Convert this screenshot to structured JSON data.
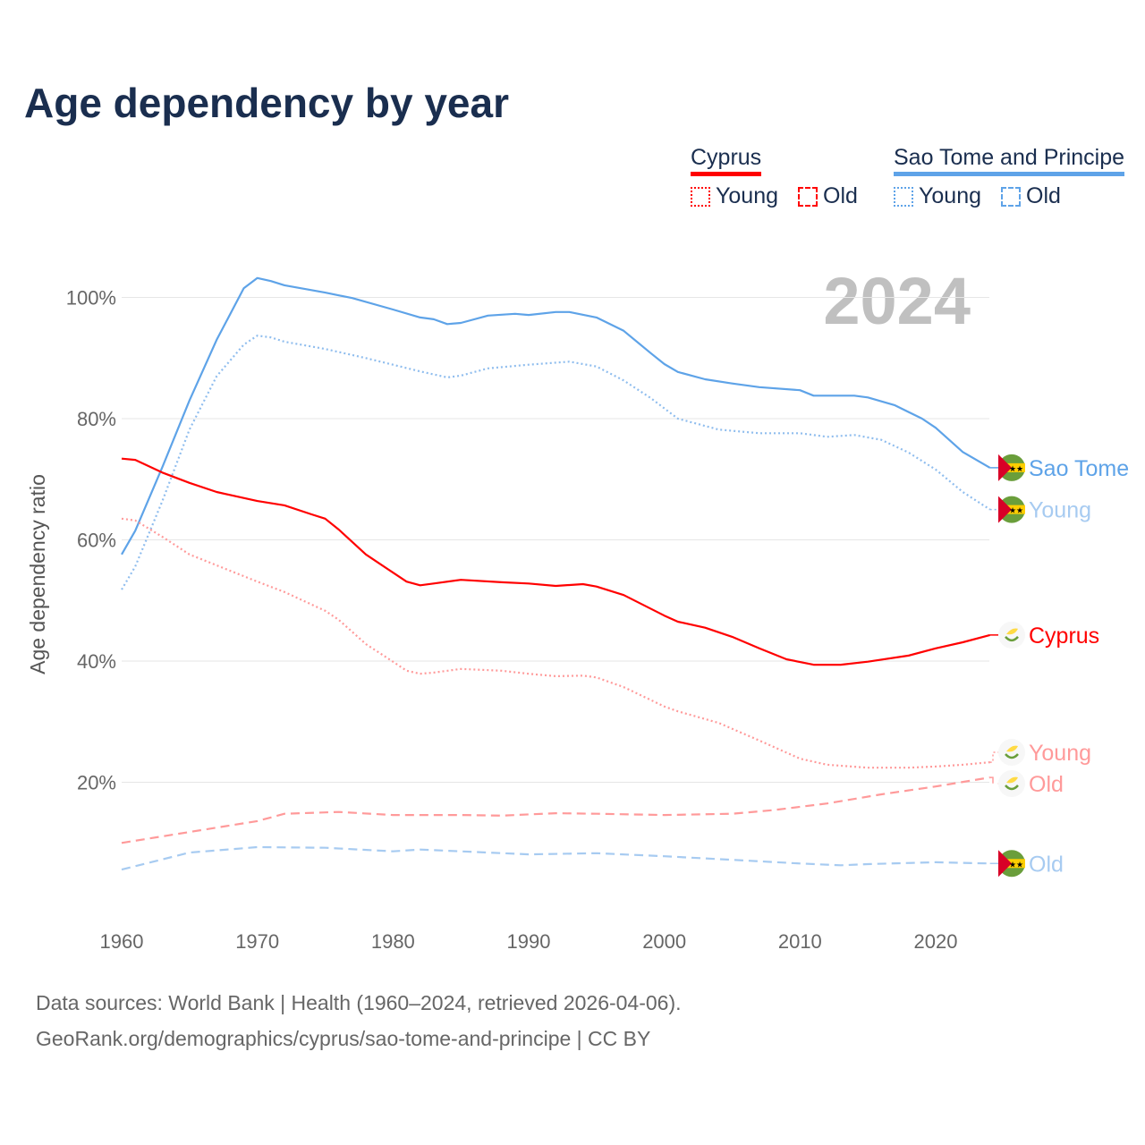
{
  "title": "Age dependency by year",
  "legend": {
    "groups": [
      {
        "name": "Cyprus",
        "color": "#ff0000",
        "items": [
          "Young",
          "Old"
        ]
      },
      {
        "name": "Sao Tome and Principe",
        "color": "#5ea3e8",
        "items": [
          "Young",
          "Old"
        ]
      }
    ]
  },
  "year_badge": "2024",
  "footer": {
    "line1": "Data sources: World Bank | Health (1960–2024, retrieved 2026-04-06).",
    "line2": "GeoRank.org/demographics/cyprus/sao-tome-and-principe | CC BY"
  },
  "chart_data": {
    "type": "line",
    "title": "Age dependency by year",
    "xlabel": "",
    "ylabel": "Age dependency ratio",
    "xlim": [
      1960,
      2024
    ],
    "ylim": [
      0,
      105
    ],
    "x_ticks": [
      "1960",
      "1970",
      "1980",
      "1990",
      "2000",
      "2010",
      "2020"
    ],
    "y_ticks": [
      "20%",
      "40%",
      "60%",
      "80%",
      "100%"
    ],
    "grid": true,
    "series": [
      {
        "name": "Sao Tome and Principe - Total",
        "end_label": "Sao Tome",
        "color": "#5ea3e8",
        "label_color": "#5ea3e8",
        "style": "solid",
        "flag": "st",
        "points": [
          [
            1960,
            57.6
          ],
          [
            1961,
            61.5
          ],
          [
            1963,
            72
          ],
          [
            1965,
            83
          ],
          [
            1967,
            93
          ],
          [
            1969,
            101.5
          ],
          [
            1970,
            103.2
          ],
          [
            1971,
            102.7
          ],
          [
            1972,
            102
          ],
          [
            1975,
            100.8
          ],
          [
            1977,
            99.9
          ],
          [
            1980,
            98
          ],
          [
            1982,
            96.7
          ],
          [
            1983,
            96.4
          ],
          [
            1984,
            95.6
          ],
          [
            1985,
            95.8
          ],
          [
            1987,
            97
          ],
          [
            1989,
            97.3
          ],
          [
            1990,
            97.1
          ],
          [
            1992,
            97.6
          ],
          [
            1993,
            97.6
          ],
          [
            1995,
            96.7
          ],
          [
            1997,
            94.5
          ],
          [
            1999,
            90.8
          ],
          [
            2000,
            89
          ],
          [
            2001,
            87.7
          ],
          [
            2003,
            86.5
          ],
          [
            2005,
            85.8
          ],
          [
            2007,
            85.2
          ],
          [
            2010,
            84.7
          ],
          [
            2011,
            83.8
          ],
          [
            2014,
            83.8
          ],
          [
            2015,
            83.5
          ],
          [
            2017,
            82.2
          ],
          [
            2019,
            80
          ],
          [
            2020,
            78.5
          ],
          [
            2022,
            74.5
          ],
          [
            2024,
            71.9
          ]
        ]
      },
      {
        "name": "Sao Tome and Principe - Young",
        "end_label": "Young",
        "color": "#8fbdee",
        "label_color": "#a7cbf1",
        "style": "dotted",
        "flag": "st",
        "points": [
          [
            1960,
            51.8
          ],
          [
            1961,
            55.6
          ],
          [
            1963,
            66.4
          ],
          [
            1965,
            78.2
          ],
          [
            1967,
            87
          ],
          [
            1969,
            92.2
          ],
          [
            1970,
            93.7
          ],
          [
            1971,
            93.4
          ],
          [
            1972,
            92.7
          ],
          [
            1975,
            91.5
          ],
          [
            1978,
            90
          ],
          [
            1980,
            88.9
          ],
          [
            1982,
            87.8
          ],
          [
            1984,
            86.8
          ],
          [
            1985,
            87.1
          ],
          [
            1987,
            88.3
          ],
          [
            1990,
            88.9
          ],
          [
            1993,
            89.4
          ],
          [
            1995,
            88.6
          ],
          [
            1997,
            86.3
          ],
          [
            1999,
            83.4
          ],
          [
            2001,
            80
          ],
          [
            2004,
            78.2
          ],
          [
            2007,
            77.6
          ],
          [
            2010,
            77.6
          ],
          [
            2012,
            77
          ],
          [
            2014,
            77.3
          ],
          [
            2016,
            76.5
          ],
          [
            2018,
            74.4
          ],
          [
            2020,
            71.6
          ],
          [
            2022,
            67.9
          ],
          [
            2024,
            65
          ]
        ]
      },
      {
        "name": "Cyprus - Total",
        "end_label": "Cyprus",
        "color": "#ff0000",
        "label_color": "#ff0000",
        "style": "solid",
        "flag": "cy",
        "points": [
          [
            1960,
            73.4
          ],
          [
            1961,
            73.2
          ],
          [
            1963,
            71.1
          ],
          [
            1965,
            69.4
          ],
          [
            1967,
            67.9
          ],
          [
            1970,
            66.4
          ],
          [
            1972,
            65.7
          ],
          [
            1974,
            64.2
          ],
          [
            1975,
            63.5
          ],
          [
            1976,
            61.7
          ],
          [
            1978,
            57.6
          ],
          [
            1980,
            54.6
          ],
          [
            1981,
            53.1
          ],
          [
            1982,
            52.5
          ],
          [
            1983,
            52.8
          ],
          [
            1985,
            53.4
          ],
          [
            1988,
            53
          ],
          [
            1990,
            52.8
          ],
          [
            1992,
            52.4
          ],
          [
            1994,
            52.7
          ],
          [
            1995,
            52.3
          ],
          [
            1997,
            50.9
          ],
          [
            2000,
            47.5
          ],
          [
            2001,
            46.5
          ],
          [
            2003,
            45.5
          ],
          [
            2005,
            44
          ],
          [
            2007,
            42.1
          ],
          [
            2009,
            40.3
          ],
          [
            2011,
            39.4
          ],
          [
            2013,
            39.4
          ],
          [
            2015,
            39.9
          ],
          [
            2018,
            40.9
          ],
          [
            2020,
            42.1
          ],
          [
            2022,
            43.1
          ],
          [
            2024,
            44.3
          ]
        ]
      },
      {
        "name": "Cyprus - Young",
        "end_label": "Young",
        "color": "#ff9a9a",
        "label_color": "#ff9a9a",
        "style": "dotted",
        "flag": "cy",
        "points": [
          [
            1960,
            63.5
          ],
          [
            1961,
            63.2
          ],
          [
            1963,
            60.5
          ],
          [
            1965,
            57.6
          ],
          [
            1967,
            55.8
          ],
          [
            1970,
            53.1
          ],
          [
            1972,
            51.4
          ],
          [
            1975,
            48.3
          ],
          [
            1976,
            46.8
          ],
          [
            1978,
            42.8
          ],
          [
            1980,
            39.9
          ],
          [
            1981,
            38.4
          ],
          [
            1982,
            37.9
          ],
          [
            1983,
            38.1
          ],
          [
            1985,
            38.7
          ],
          [
            1988,
            38.4
          ],
          [
            1990,
            37.9
          ],
          [
            1992,
            37.5
          ],
          [
            1994,
            37.6
          ],
          [
            1995,
            37.3
          ],
          [
            1997,
            35.7
          ],
          [
            2000,
            32.5
          ],
          [
            2001,
            31.7
          ],
          [
            2004,
            29.8
          ],
          [
            2007,
            26.9
          ],
          [
            2010,
            23.9
          ],
          [
            2012,
            22.9
          ],
          [
            2015,
            22.4
          ],
          [
            2018,
            22.4
          ],
          [
            2020,
            22.6
          ],
          [
            2022,
            22.9
          ],
          [
            2024,
            23.3
          ]
        ]
      },
      {
        "name": "Cyprus - Old",
        "end_label": "Old",
        "color": "#ff9a9a",
        "label_color": "#ff9a9a",
        "style": "dashed",
        "flag": "cy",
        "points": [
          [
            1960,
            10
          ],
          [
            1965,
            11.8
          ],
          [
            1970,
            13.6
          ],
          [
            1972,
            14.8
          ],
          [
            1976,
            15.1
          ],
          [
            1980,
            14.6
          ],
          [
            1985,
            14.6
          ],
          [
            1988,
            14.5
          ],
          [
            1992,
            14.9
          ],
          [
            1995,
            14.8
          ],
          [
            2000,
            14.6
          ],
          [
            2005,
            14.8
          ],
          [
            2008,
            15.4
          ],
          [
            2012,
            16.5
          ],
          [
            2016,
            18
          ],
          [
            2020,
            19.3
          ],
          [
            2024,
            20.8
          ]
        ]
      },
      {
        "name": "Sao Tome and Principe - Old",
        "end_label": "Old",
        "color": "#a7cbf1",
        "label_color": "#a7cbf1",
        "style": "dashed",
        "flag": "st",
        "points": [
          [
            1960,
            5.6
          ],
          [
            1965,
            8.4
          ],
          [
            1970,
            9.3
          ],
          [
            1975,
            9.2
          ],
          [
            1980,
            8.6
          ],
          [
            1982,
            8.9
          ],
          [
            1990,
            8.1
          ],
          [
            1995,
            8.3
          ],
          [
            2000,
            7.8
          ],
          [
            2005,
            7.2
          ],
          [
            2010,
            6.6
          ],
          [
            2013,
            6.3
          ],
          [
            2015,
            6.5
          ],
          [
            2020,
            6.8
          ],
          [
            2024,
            6.6
          ]
        ]
      }
    ]
  }
}
